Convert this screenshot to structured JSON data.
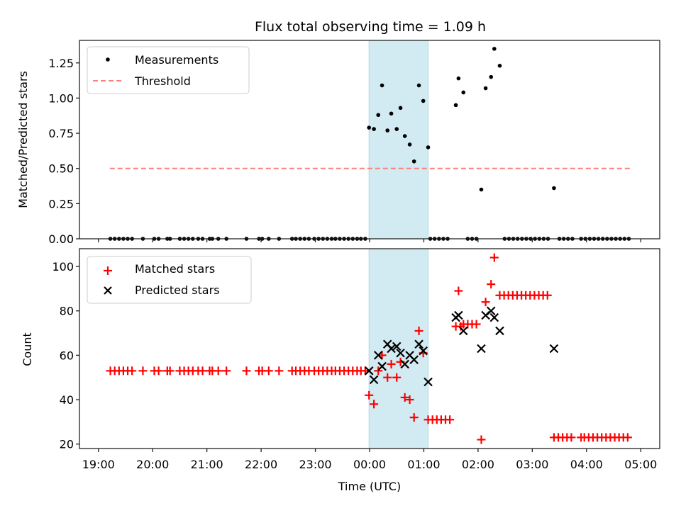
{
  "chart_data": [
    {
      "type": "scatter",
      "panel": "top",
      "title": "Flux total observing time = 1.09 h",
      "xlabel": "",
      "ylabel": "Matched/Predicted stars",
      "xlim_hours": [
        -5.35,
        5.35
      ],
      "ylim": [
        0,
        1.41
      ],
      "yticks": [
        0.0,
        0.25,
        0.5,
        0.75,
        1.0,
        1.25
      ],
      "ytick_labels": [
        "0.00",
        "0.25",
        "0.50",
        "0.75",
        "1.00",
        "1.25"
      ],
      "legend": {
        "placement": "top-left",
        "entries": [
          "Measurements",
          "Threshold"
        ]
      },
      "shaded_span_hours": [
        -0.01,
        1.08
      ],
      "shade_color": "#add8e6",
      "threshold": {
        "value": 0.5,
        "x_range_hours": [
          -4.79,
          4.83
        ],
        "color": "#ff7f7f",
        "label": "Threshold"
      },
      "series": [
        {
          "name": "Measurements",
          "color": "#000000",
          "marker": "dot",
          "points": [
            [
              -4.78,
              0
            ],
            [
              -4.7,
              0
            ],
            [
              -4.62,
              0
            ],
            [
              -4.54,
              0
            ],
            [
              -4.46,
              0
            ],
            [
              -4.38,
              0
            ],
            [
              -4.18,
              0
            ],
            [
              -3.97,
              0
            ],
            [
              -3.89,
              0
            ],
            [
              -3.73,
              0
            ],
            [
              -3.68,
              0
            ],
            [
              -3.5,
              0
            ],
            [
              -3.42,
              0
            ],
            [
              -3.34,
              0
            ],
            [
              -3.26,
              0
            ],
            [
              -3.16,
              0
            ],
            [
              -3.08,
              0
            ],
            [
              -2.95,
              0
            ],
            [
              -2.9,
              0
            ],
            [
              -2.79,
              0
            ],
            [
              -2.64,
              0
            ],
            [
              -2.27,
              0
            ],
            [
              -2.04,
              0
            ],
            [
              -1.98,
              0
            ],
            [
              -1.86,
              0
            ],
            [
              -1.67,
              0
            ],
            [
              -1.43,
              0
            ],
            [
              -1.36,
              0
            ],
            [
              -1.28,
              0
            ],
            [
              -1.2,
              0
            ],
            [
              -1.12,
              0
            ],
            [
              -1.02,
              0
            ],
            [
              -0.94,
              0
            ],
            [
              -0.86,
              0
            ],
            [
              -0.78,
              0
            ],
            [
              -0.7,
              0
            ],
            [
              -0.63,
              0
            ],
            [
              -0.55,
              0
            ],
            [
              -0.47,
              0
            ],
            [
              -0.39,
              0
            ],
            [
              -0.31,
              0
            ],
            [
              -0.23,
              0
            ],
            [
              -0.16,
              0
            ],
            [
              -0.08,
              0
            ],
            [
              -0.01,
              0.79
            ],
            [
              0.08,
              0.78
            ],
            [
              0.16,
              0.88
            ],
            [
              0.23,
              1.09
            ],
            [
              0.33,
              0.77
            ],
            [
              0.4,
              0.89
            ],
            [
              0.5,
              0.78
            ],
            [
              0.57,
              0.93
            ],
            [
              0.65,
              0.73
            ],
            [
              0.74,
              0.67
            ],
            [
              0.82,
              0.55
            ],
            [
              0.91,
              1.09
            ],
            [
              0.99,
              0.98
            ],
            [
              1.08,
              0.65
            ],
            [
              1.12,
              0
            ],
            [
              1.2,
              0
            ],
            [
              1.28,
              0
            ],
            [
              1.36,
              0
            ],
            [
              1.44,
              0
            ],
            [
              1.59,
              0.95
            ],
            [
              1.64,
              1.14
            ],
            [
              1.73,
              1.04
            ],
            [
              1.81,
              0
            ],
            [
              1.89,
              0
            ],
            [
              1.97,
              0
            ],
            [
              2.06,
              0.35
            ],
            [
              2.14,
              1.07
            ],
            [
              2.24,
              1.15
            ],
            [
              2.3,
              1.35
            ],
            [
              2.4,
              1.23
            ],
            [
              2.49,
              0
            ],
            [
              2.57,
              0
            ],
            [
              2.65,
              0
            ],
            [
              2.73,
              0
            ],
            [
              2.81,
              0
            ],
            [
              2.89,
              0
            ],
            [
              2.97,
              0
            ],
            [
              3.05,
              0
            ],
            [
              3.13,
              0
            ],
            [
              3.21,
              0
            ],
            [
              3.29,
              0
            ],
            [
              3.4,
              0.36
            ],
            [
              3.5,
              0
            ],
            [
              3.58,
              0
            ],
            [
              3.66,
              0
            ],
            [
              3.74,
              0
            ],
            [
              3.9,
              0
            ],
            [
              3.98,
              0
            ],
            [
              4.06,
              0
            ],
            [
              4.14,
              0
            ],
            [
              4.22,
              0
            ],
            [
              4.3,
              0
            ],
            [
              4.38,
              0
            ],
            [
              4.46,
              0
            ],
            [
              4.54,
              0
            ],
            [
              4.62,
              0
            ],
            [
              4.7,
              0
            ],
            [
              4.78,
              0
            ]
          ]
        }
      ]
    },
    {
      "type": "scatter",
      "panel": "bottom",
      "title": "",
      "xlabel": "Time (UTC)",
      "ylabel": "Count",
      "xlim_hours": [
        -5.35,
        5.35
      ],
      "ylim": [
        18,
        108
      ],
      "yticks": [
        20,
        40,
        60,
        80,
        100
      ],
      "ytick_labels": [
        "20",
        "40",
        "60",
        "80",
        "100"
      ],
      "xticks_hours": [
        -5,
        -4,
        -3,
        -2,
        -1,
        0,
        1,
        2,
        3,
        4,
        5
      ],
      "xtick_labels": [
        "19:00",
        "20:00",
        "21:00",
        "22:00",
        "23:00",
        "00:00",
        "01:00",
        "02:00",
        "03:00",
        "04:00",
        "05:00"
      ],
      "legend": {
        "placement": "top-left",
        "entries": [
          "Matched stars",
          "Predicted stars"
        ]
      },
      "shaded_span_hours": [
        -0.01,
        1.08
      ],
      "shade_color": "#add8e6",
      "series": [
        {
          "name": "Matched stars",
          "color": "#ff0000",
          "marker": "plus",
          "points": [
            [
              -4.78,
              53
            ],
            [
              -4.7,
              53
            ],
            [
              -4.62,
              53
            ],
            [
              -4.54,
              53
            ],
            [
              -4.46,
              53
            ],
            [
              -4.38,
              53
            ],
            [
              -4.18,
              53
            ],
            [
              -3.97,
              53
            ],
            [
              -3.89,
              53
            ],
            [
              -3.73,
              53
            ],
            [
              -3.68,
              53
            ],
            [
              -3.5,
              53
            ],
            [
              -3.42,
              53
            ],
            [
              -3.34,
              53
            ],
            [
              -3.26,
              53
            ],
            [
              -3.16,
              53
            ],
            [
              -3.08,
              53
            ],
            [
              -2.95,
              53
            ],
            [
              -2.9,
              53
            ],
            [
              -2.79,
              53
            ],
            [
              -2.64,
              53
            ],
            [
              -2.27,
              53
            ],
            [
              -2.04,
              53
            ],
            [
              -1.98,
              53
            ],
            [
              -1.86,
              53
            ],
            [
              -1.67,
              53
            ],
            [
              -1.43,
              53
            ],
            [
              -1.36,
              53
            ],
            [
              -1.28,
              53
            ],
            [
              -1.2,
              53
            ],
            [
              -1.12,
              53
            ],
            [
              -1.02,
              53
            ],
            [
              -0.94,
              53
            ],
            [
              -0.86,
              53
            ],
            [
              -0.78,
              53
            ],
            [
              -0.7,
              53
            ],
            [
              -0.63,
              53
            ],
            [
              -0.55,
              53
            ],
            [
              -0.47,
              53
            ],
            [
              -0.39,
              53
            ],
            [
              -0.31,
              53
            ],
            [
              -0.23,
              53
            ],
            [
              -0.16,
              53
            ],
            [
              -0.08,
              53
            ],
            [
              -0.01,
              42
            ],
            [
              0.08,
              38
            ],
            [
              0.16,
              53
            ],
            [
              0.23,
              60
            ],
            [
              0.33,
              50
            ],
            [
              0.4,
              56
            ],
            [
              0.5,
              50
            ],
            [
              0.57,
              57
            ],
            [
              0.65,
              41
            ],
            [
              0.74,
              40
            ],
            [
              0.82,
              32
            ],
            [
              0.91,
              71
            ],
            [
              0.99,
              61
            ],
            [
              1.08,
              31
            ],
            [
              1.16,
              31
            ],
            [
              1.24,
              31
            ],
            [
              1.32,
              31
            ],
            [
              1.4,
              31
            ],
            [
              1.48,
              31
            ],
            [
              1.59,
              73
            ],
            [
              1.64,
              89
            ],
            [
              1.68,
              73
            ],
            [
              1.73,
              74
            ],
            [
              1.81,
              74
            ],
            [
              1.89,
              74
            ],
            [
              1.97,
              74
            ],
            [
              2.06,
              22
            ],
            [
              2.14,
              84
            ],
            [
              2.24,
              92
            ],
            [
              2.3,
              104
            ],
            [
              2.4,
              87
            ],
            [
              2.48,
              87
            ],
            [
              2.56,
              87
            ],
            [
              2.64,
              87
            ],
            [
              2.72,
              87
            ],
            [
              2.8,
              87
            ],
            [
              2.88,
              87
            ],
            [
              2.96,
              87
            ],
            [
              3.04,
              87
            ],
            [
              3.12,
              87
            ],
            [
              3.2,
              87
            ],
            [
              3.28,
              87
            ],
            [
              3.4,
              23
            ],
            [
              3.48,
              23
            ],
            [
              3.56,
              23
            ],
            [
              3.64,
              23
            ],
            [
              3.72,
              23
            ],
            [
              3.9,
              23
            ],
            [
              3.96,
              23
            ],
            [
              4.04,
              23
            ],
            [
              4.12,
              23
            ],
            [
              4.2,
              23
            ],
            [
              4.28,
              23
            ],
            [
              4.36,
              23
            ],
            [
              4.44,
              23
            ],
            [
              4.52,
              23
            ],
            [
              4.6,
              23
            ],
            [
              4.68,
              23
            ],
            [
              4.76,
              23
            ]
          ]
        },
        {
          "name": "Predicted stars",
          "color": "#000000",
          "marker": "x",
          "points": [
            [
              -0.01,
              53
            ],
            [
              0.08,
              49
            ],
            [
              0.16,
              60
            ],
            [
              0.23,
              55
            ],
            [
              0.33,
              65
            ],
            [
              0.4,
              63
            ],
            [
              0.5,
              64
            ],
            [
              0.57,
              61
            ],
            [
              0.65,
              56
            ],
            [
              0.74,
              60
            ],
            [
              0.82,
              58
            ],
            [
              0.91,
              65
            ],
            [
              0.99,
              62
            ],
            [
              1.08,
              48
            ],
            [
              1.59,
              77
            ],
            [
              1.64,
              78
            ],
            [
              1.73,
              71
            ],
            [
              2.06,
              63
            ],
            [
              2.14,
              78
            ],
            [
              2.24,
              80
            ],
            [
              2.3,
              77
            ],
            [
              2.4,
              71
            ],
            [
              3.4,
              63
            ]
          ]
        }
      ]
    }
  ]
}
